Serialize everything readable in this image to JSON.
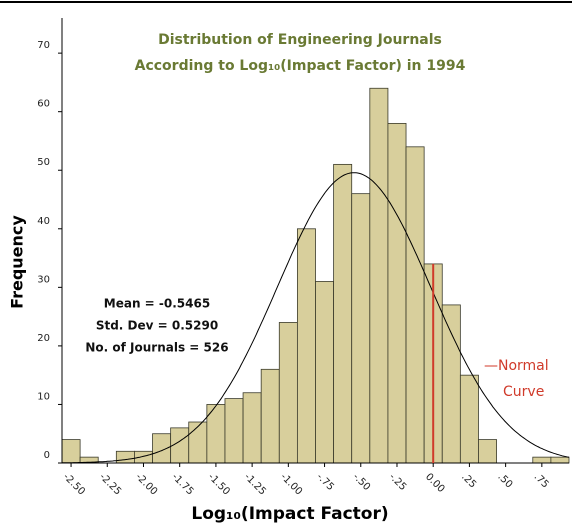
{
  "chart_data": {
    "type": "histogram",
    "title": [
      "Distribution of Engineering Journals",
      "According to Log₁₀(Impact Factor) in 1994"
    ],
    "x_label": "Log₁₀(Impact Factor)",
    "y_label": "Frequency",
    "bins": [
      -2.5625,
      -2.4375,
      -2.3125,
      -2.1875,
      -2.0625,
      -1.9375,
      -1.8125,
      -1.6875,
      -1.5625,
      -1.4375,
      -1.3125,
      -1.1875,
      -1.0625,
      -0.9375,
      -0.8125,
      -0.6875,
      -0.5625,
      -0.4375,
      -0.3125,
      -0.1875,
      -0.0625,
      0.0625,
      0.1875,
      0.3125,
      0.4375,
      0.5625,
      0.6875,
      0.8125,
      0.9375
    ],
    "values": [
      4,
      1,
      0,
      2,
      2,
      5,
      6,
      7,
      10,
      11,
      12,
      16,
      24,
      40,
      31,
      51,
      46,
      64,
      58,
      54,
      34,
      27,
      15,
      4,
      0,
      0,
      1,
      1
    ],
    "color": "#d8cf9c",
    "edge_color": "#3a3a2a",
    "xlim": [
      -2.5625,
      0.9375
    ],
    "ylim": [
      0,
      76
    ],
    "xticks": [
      {
        "value": -2.5,
        "label": "-2.50"
      },
      {
        "value": -2.25,
        "label": "-2.25"
      },
      {
        "value": -2,
        "label": "-2.00"
      },
      {
        "value": -1.75,
        "label": "-1.75"
      },
      {
        "value": -1.5,
        "label": "-1.50"
      },
      {
        "value": -1.25,
        "label": "-1.25"
      },
      {
        "value": -1,
        "label": "-1.00"
      },
      {
        "value": -0.75,
        "label": "-.75"
      },
      {
        "value": -0.5,
        "label": "-.50"
      },
      {
        "value": -0.25,
        "label": "-.25"
      },
      {
        "value": 0,
        "label": "0.00"
      },
      {
        "value": 0.25,
        "label": ".25"
      },
      {
        "value": 0.5,
        "label": ".50"
      },
      {
        "value": 0.75,
        "label": ".75"
      }
    ],
    "yticks": [
      0,
      10,
      20,
      30,
      40,
      50,
      60,
      70
    ],
    "stats": [
      {
        "label": "Mean = -0.5465",
        "value": -0.5465
      },
      {
        "label": "Std. Dev = 0.5290",
        "value": 0.529
      },
      {
        "label": "No. of Journals = 526",
        "value": 526
      }
    ],
    "reference_line": {
      "x": 0,
      "color": "#d03a2a"
    },
    "curve_annotation": [
      "—Normal",
      "Curve"
    ]
  }
}
